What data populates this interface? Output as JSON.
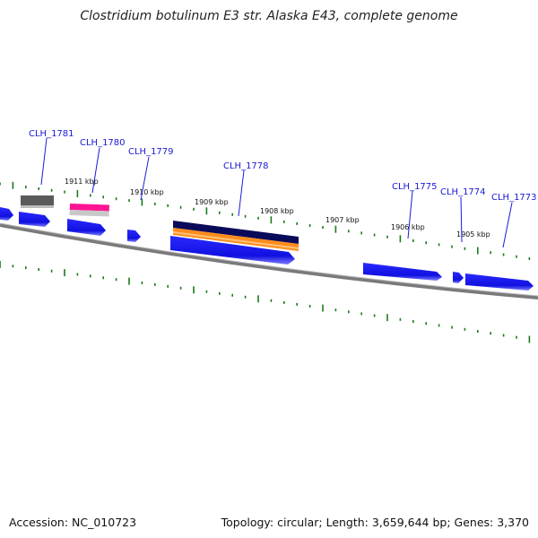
{
  "title": "Clostridium botulinum E3 str. Alaska E43, complete genome",
  "accession": "Accession: NC_010723",
  "stats": "Topology: circular; Length: 3,659,644 bp; Genes: 3,370",
  "kbp_labels": [
    "1911 kbp",
    "1910 kbp",
    "1909 kbp",
    "1908 kbp",
    "1907 kbp",
    "1906 kbp",
    "1905 kbp"
  ],
  "gene_labels": [
    "CLH_1781",
    "CLH_1780",
    "CLH_1779",
    "CLH_1778",
    "CLH_1775",
    "CLH_1774",
    "CLH_1773"
  ],
  "colors": {
    "gene_forward": "#1414e6",
    "tick": "#1a7a1a",
    "backbone": "#7a7a7a",
    "label": "#1a1ad6",
    "feature_gray": "#5a5a5a",
    "feature_pink": "#ff1493",
    "feature_navy": "#0a0a5a",
    "feature_orange": "#ff8c1a"
  }
}
